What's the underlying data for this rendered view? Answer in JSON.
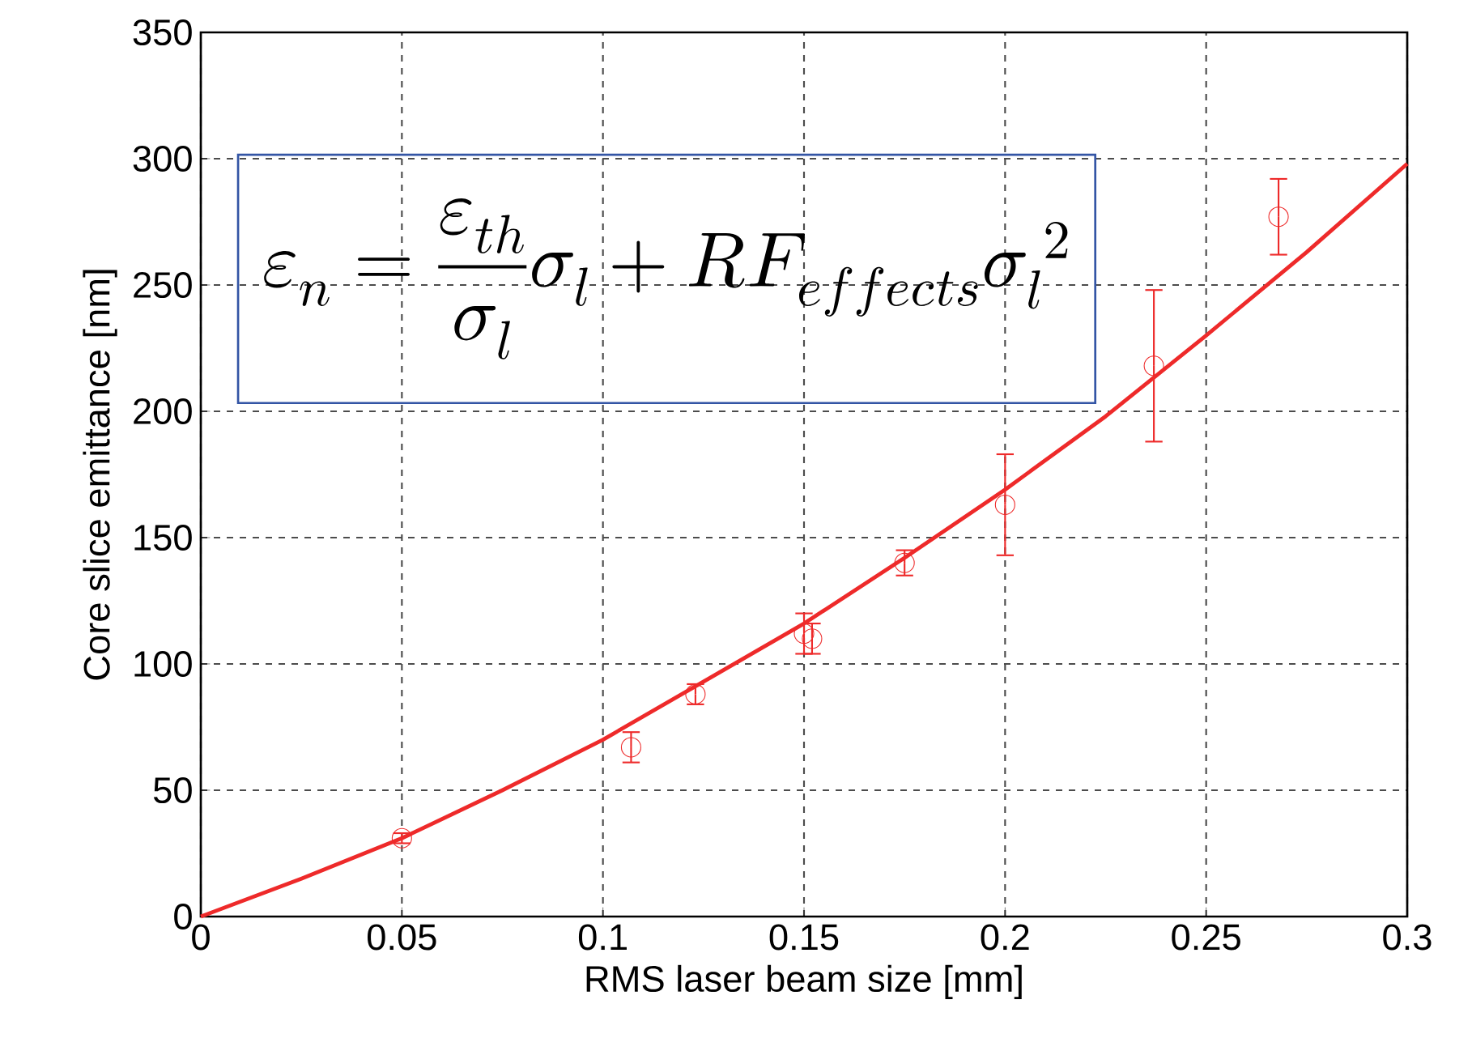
{
  "chart_data": {
    "type": "scatter",
    "xlabel": "RMS laser beam size [mm]",
    "ylabel": "Core slice emittance [nm]",
    "xlim": [
      0,
      0.3
    ],
    "ylim": [
      0,
      350
    ],
    "xticks": [
      0,
      0.05,
      0.1,
      0.15,
      0.2,
      0.25,
      0.3
    ],
    "yticks": [
      0,
      50,
      100,
      150,
      200,
      250,
      300,
      350
    ],
    "grid": true,
    "series": [
      {
        "color": "#ee2a2a",
        "marker": "circle",
        "x": [
          0.05,
          0.107,
          0.123,
          0.15,
          0.152,
          0.175,
          0.2,
          0.237,
          0.268
        ],
        "values": [
          31,
          67,
          88,
          112,
          110,
          140,
          163,
          218,
          277
        ],
        "errors": [
          2,
          6,
          4,
          8,
          6,
          5,
          20,
          30,
          15
        ]
      },
      {
        "type": "line",
        "color": "#ee2a2a",
        "marker": "none",
        "line_style": "solid",
        "x": [
          0,
          0.025,
          0.05,
          0.075,
          0.1,
          0.125,
          0.15,
          0.175,
          0.2,
          0.225,
          0.25,
          0.275,
          0.3
        ],
        "values": [
          0,
          15,
          31,
          50,
          70,
          93,
          116,
          142,
          169,
          198,
          230,
          263,
          298
        ]
      }
    ],
    "annotations": [
      "\\varepsilon_n = \\frac{\\varepsilon_{th}}{\\sigma_l}\\sigma_l + RF_{effects}\\sigma_l^{\\;2}"
    ]
  }
}
